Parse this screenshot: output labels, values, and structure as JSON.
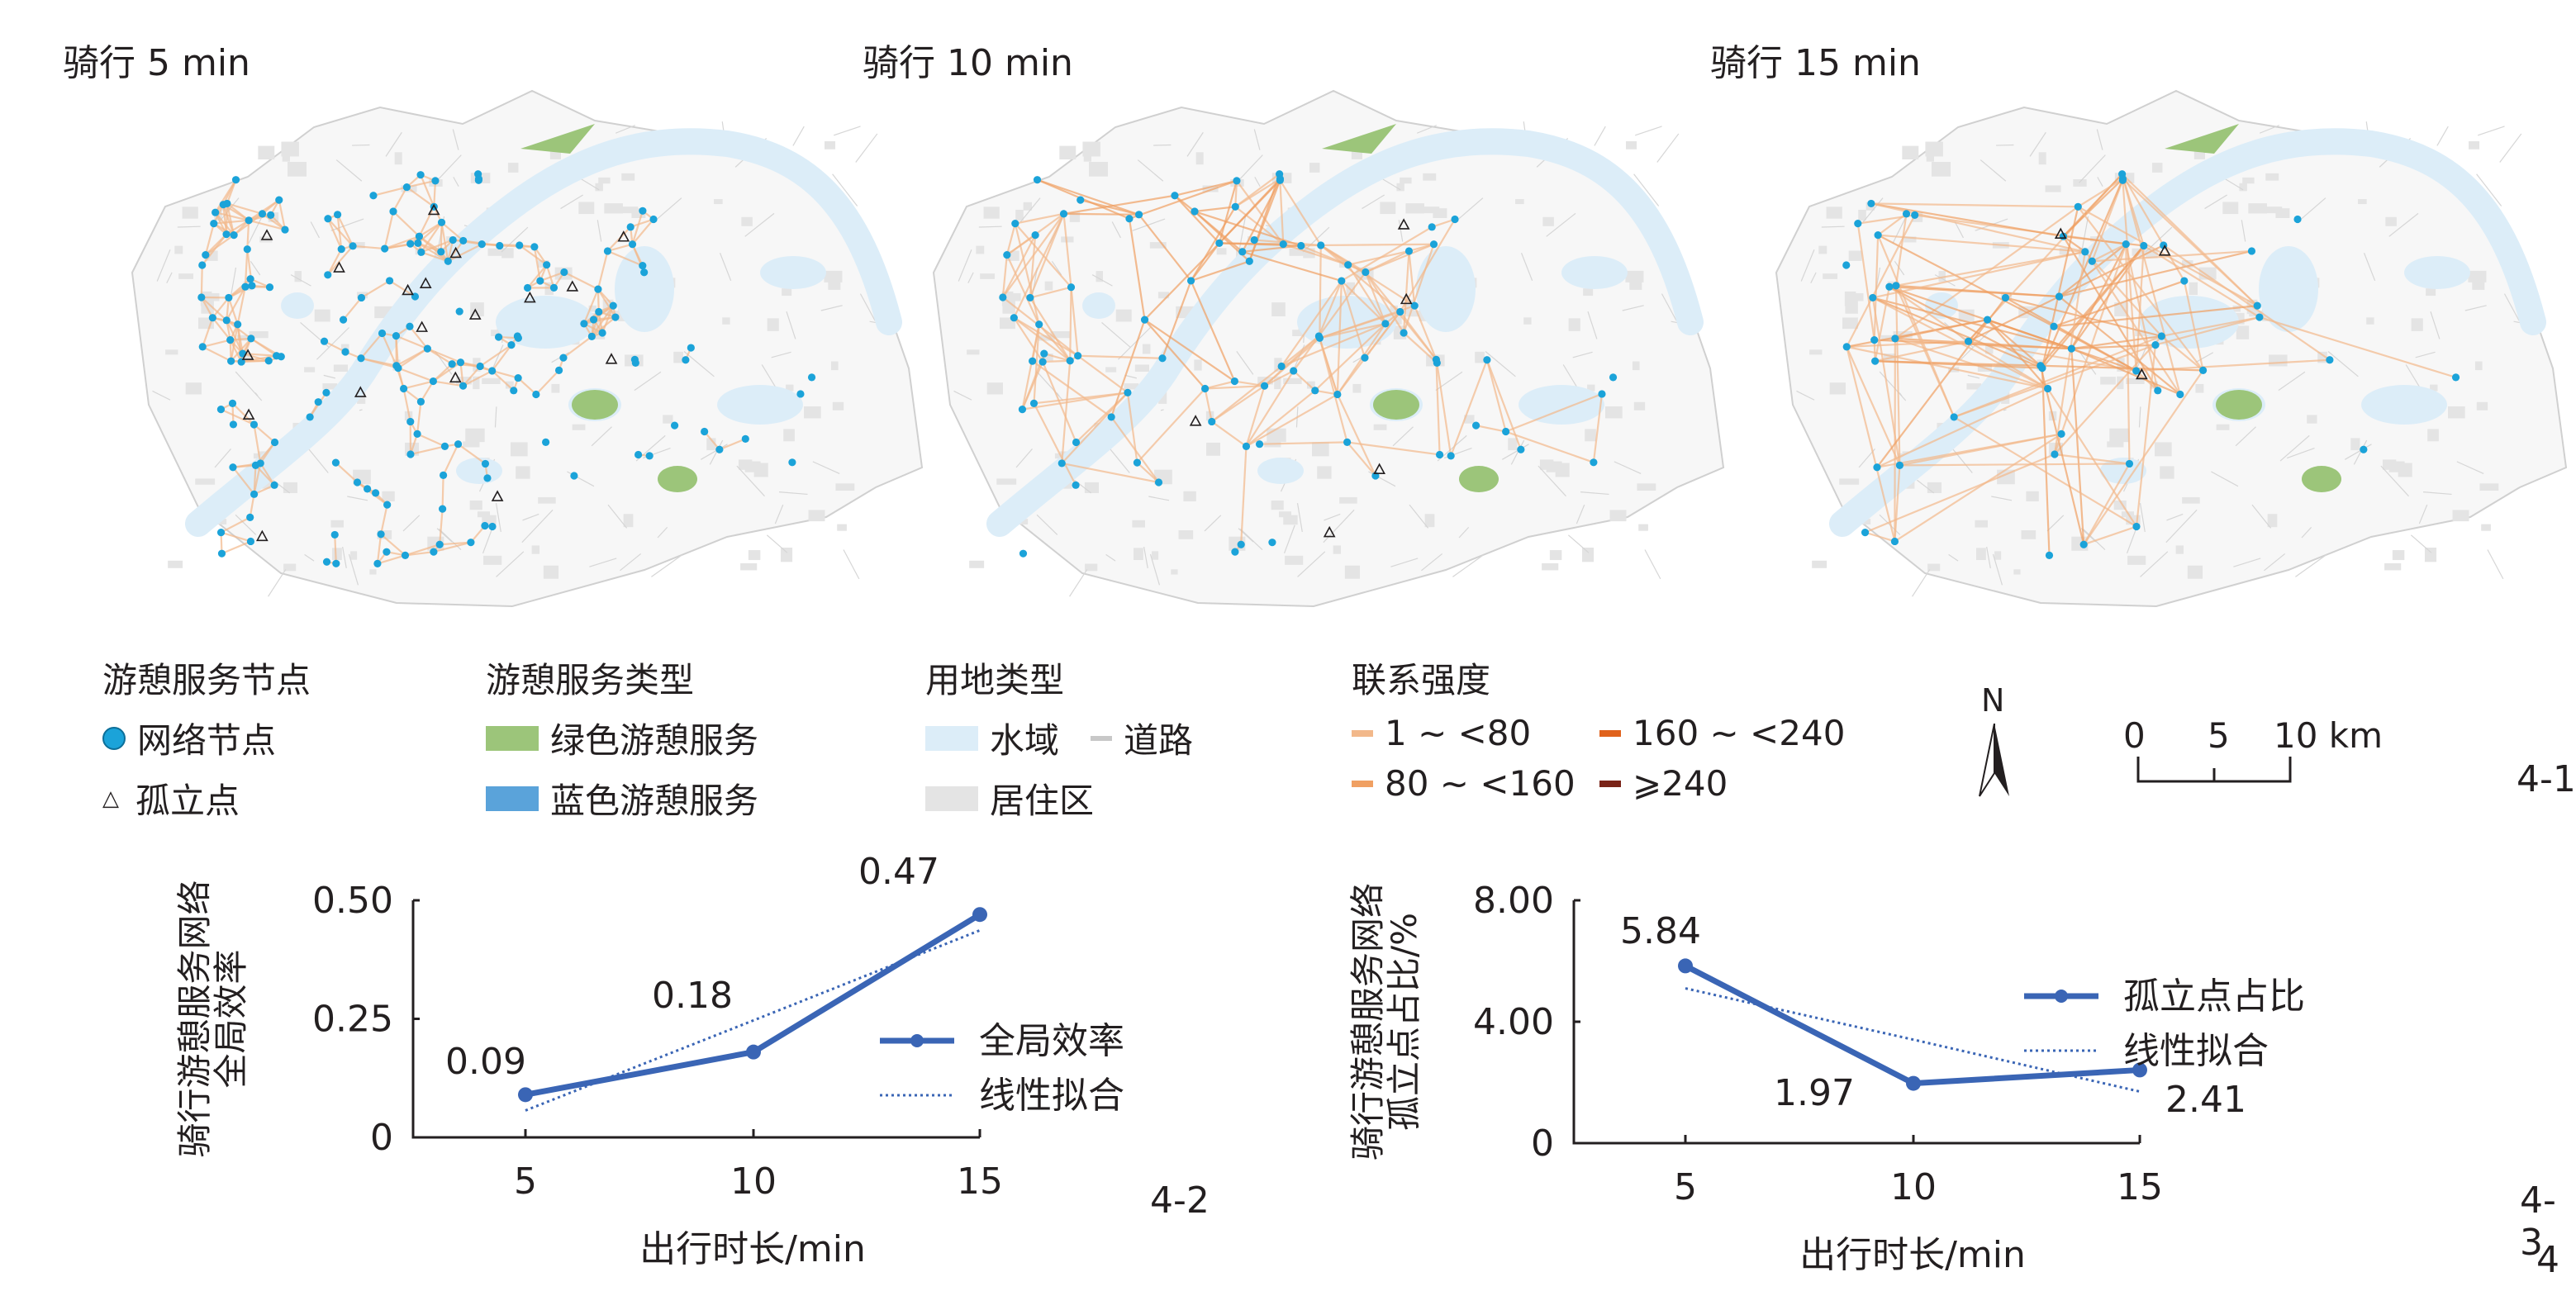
{
  "maps": [
    {
      "title": "骑行 5 min"
    },
    {
      "title": "骑行 10 min"
    },
    {
      "title": "骑行 15 min"
    }
  ],
  "legend": {
    "nodes": {
      "title": "游憩服务节点",
      "network_node": "网络节点",
      "isolated_point": "孤立点"
    },
    "service_type": {
      "title": "游憩服务类型",
      "green": "绿色游憩服务",
      "blue": "蓝色游憩服务"
    },
    "land_use": {
      "title": "用地类型",
      "water": "水域",
      "road": "道路",
      "residential": "居住区"
    },
    "strength": {
      "title": "联系强度",
      "c1": "1 ~ <80",
      "c2": "80 ~ <160",
      "c3": "160 ~ <240",
      "c4": "⩾240"
    },
    "north": "N",
    "scale": {
      "t0": "0",
      "t1": "5",
      "t2": "10 km"
    },
    "colors": {
      "node": "#1ba3d9",
      "green": "#9cc57a",
      "blue": "#5aa3da",
      "water": "#dcedf8",
      "road": "#c8c8c8",
      "residential": "#e4e4e4",
      "c1": "#f2b88a",
      "c2": "#f0a062",
      "c3": "#e0621c",
      "c4": "#7a2418"
    }
  },
  "figure_labels": {
    "f1": "4-1",
    "f2": "4-2",
    "f3": "4-3",
    "f4": "4"
  },
  "chart_data": [
    {
      "type": "line",
      "x": [
        5,
        10,
        15
      ],
      "series": [
        {
          "name": "全局效率",
          "values": [
            0.09,
            0.18,
            0.47
          ],
          "style": "solid-marker",
          "color": "#3a65b5"
        },
        {
          "name": "线性拟合",
          "values": [
            0.0567,
            0.2467,
            0.4367
          ],
          "style": "dotted",
          "color": "#3a65b5"
        }
      ],
      "data_labels": [
        "0.09",
        "0.18",
        "0.47"
      ],
      "xlabel": "出行时长/min",
      "ylabel": [
        "骑行游憩服务网络",
        "全局效率"
      ],
      "xticks": [
        "5",
        "10",
        "15"
      ],
      "yticks": [
        "0",
        "0.25",
        "0.50"
      ],
      "ylim": [
        0,
        0.5
      ],
      "legend": "right"
    },
    {
      "type": "line",
      "x": [
        5,
        10,
        15
      ],
      "series": [
        {
          "name": "孤立点占比",
          "values": [
            5.84,
            1.97,
            2.41
          ],
          "style": "solid-marker",
          "color": "#3a65b5"
        },
        {
          "name": "线性拟合",
          "values": [
            5.1,
            3.41,
            1.7
          ],
          "style": "dotted",
          "color": "#3a65b5"
        }
      ],
      "data_labels": [
        "5.84",
        "1.97",
        "2.41"
      ],
      "xlabel": "出行时长/min",
      "ylabel": [
        "骑行游憩服务网络",
        "孤立点占比/%"
      ],
      "xticks": [
        "5",
        "10",
        "15"
      ],
      "yticks": [
        "0",
        "4.00",
        "8.00"
      ],
      "ylim": [
        0,
        8
      ],
      "legend": "right"
    }
  ]
}
